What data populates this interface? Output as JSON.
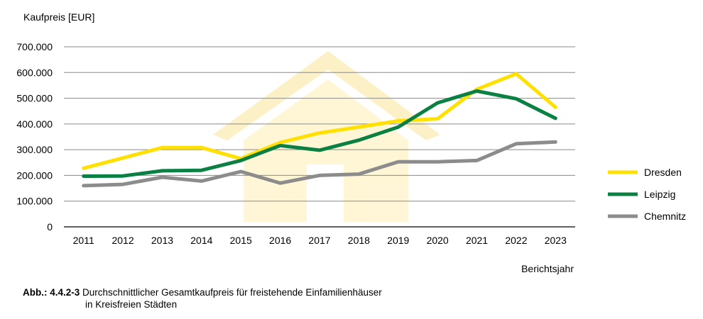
{
  "chart_data": {
    "type": "line",
    "ylabel": "Kaufpreis [EUR]",
    "xlabel": "Berichtsjahr",
    "x": [
      "2011",
      "2012",
      "2013",
      "2014",
      "2015",
      "2016",
      "2017",
      "2018",
      "2019",
      "2020",
      "2021",
      "2022",
      "2023"
    ],
    "ylim": [
      0,
      700000
    ],
    "yticks": [
      0,
      100000,
      200000,
      300000,
      400000,
      500000,
      600000,
      700000
    ],
    "ytick_labels": [
      "0",
      "100.000",
      "200.000",
      "300.000",
      "400.000",
      "500.000",
      "600.000",
      "700.000"
    ],
    "grid": true,
    "legend_position": "right",
    "series": [
      {
        "name": "Dresden",
        "color": "#FFE000",
        "values": [
          228000,
          268000,
          308000,
          308000,
          265000,
          328000,
          365000,
          388000,
          412000,
          420000,
          535000,
          595000,
          465000
        ]
      },
      {
        "name": "Leipzig",
        "color": "#0A8043",
        "values": [
          197000,
          198000,
          218000,
          220000,
          258000,
          316000,
          298000,
          337000,
          388000,
          482000,
          528000,
          498000,
          422000
        ]
      },
      {
        "name": "Chemnitz",
        "color": "#8C8C8C",
        "values": [
          160000,
          165000,
          193000,
          178000,
          215000,
          170000,
          200000,
          205000,
          253000,
          253000,
          258000,
          323000,
          330000
        ]
      }
    ]
  },
  "caption": {
    "label": "Abb.: 4.4.2-3",
    "line1": "Durchschnittlicher Gesamtkaufpreis für freistehende Einfamilienhäuser",
    "line2": "in Kreisfreien Städten"
  }
}
